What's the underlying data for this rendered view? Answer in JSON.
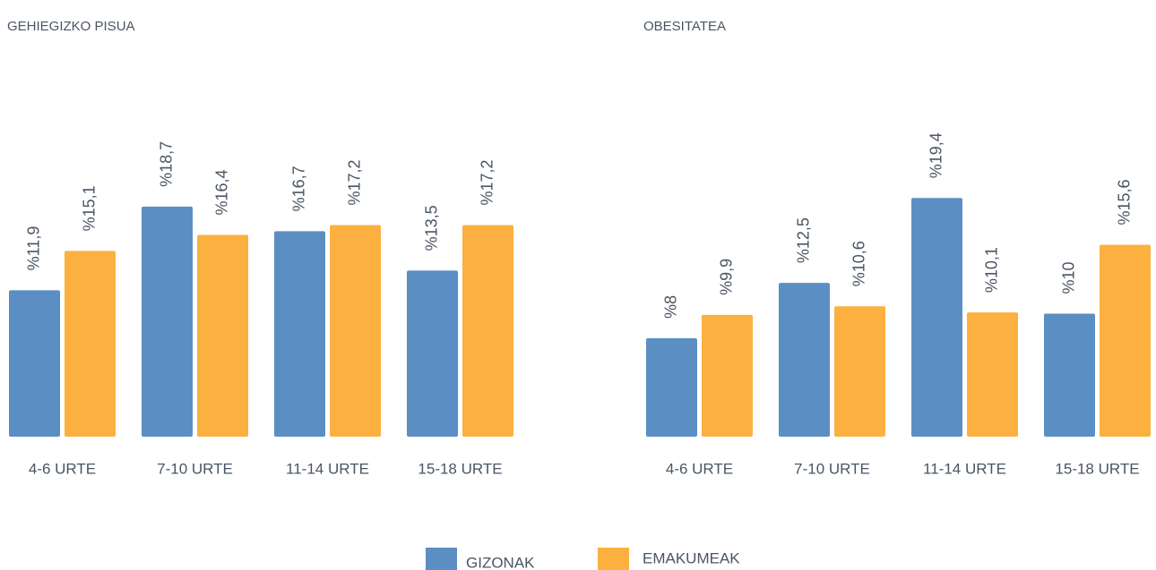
{
  "chart_data": [
    {
      "type": "bar",
      "title": "GEHIEGIZKO PISUA",
      "categories": [
        "4-6 URTE",
        "7-10 URTE",
        "11-14 URTE",
        "15-18 URTE"
      ],
      "series": [
        {
          "name": "GIZONAK",
          "color": "#5b8fc3",
          "values": [
            11.9,
            18.7,
            16.7,
            13.5
          ],
          "value_labels": [
            "%11,9",
            "%18,7",
            "%16,7",
            "%13,5"
          ]
        },
        {
          "name": "EMAKUMEAK",
          "color": "#fbb040",
          "values": [
            15.1,
            16.4,
            17.2,
            17.2
          ],
          "value_labels": [
            "%15,1",
            "%16,4",
            "%17,2",
            "%17,2"
          ]
        }
      ]
    },
    {
      "type": "bar",
      "title": "OBESITATEA",
      "categories": [
        "4-6 URTE",
        "7-10 URTE",
        "11-14 URTE",
        "15-18 URTE"
      ],
      "series": [
        {
          "name": "GIZONAK",
          "color": "#5b8fc3",
          "values": [
            8,
            12.5,
            19.4,
            10
          ],
          "value_labels": [
            "%8",
            "%12,5",
            "%19,4",
            "%10"
          ]
        },
        {
          "name": "EMAKUMEAK",
          "color": "#fbb040",
          "values": [
            9.9,
            10.6,
            10.1,
            15.6
          ],
          "value_labels": [
            "%9,9",
            "%10,6",
            "%10,1",
            "%15,6"
          ]
        }
      ]
    }
  ]
}
